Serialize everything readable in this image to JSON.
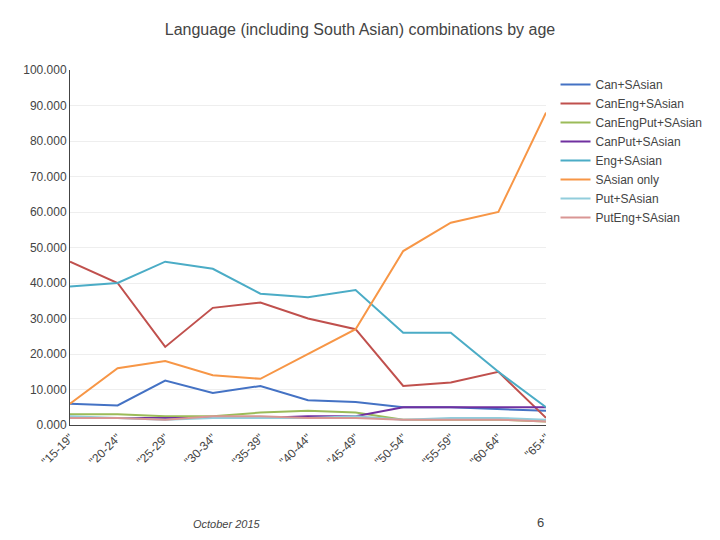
{
  "chart_data": {
    "type": "line",
    "title": "Language (including South Asian) combinations by age",
    "categories": [
      "\"15-19\"",
      "\"20-24\"",
      "\"25-29\"",
      "\"30-34\"",
      "\"35-39\"",
      "\"40-44\"",
      "\"45-49\"",
      "\"50-54\"",
      "\"55-59\"",
      "\"60-64\"",
      "\"65+\""
    ],
    "series": [
      {
        "name": "Can+SAsian",
        "color": "#4472C4",
        "values": [
          6000,
          5500,
          12500,
          9000,
          11000,
          7000,
          6500,
          5000,
          5000,
          4500,
          4000
        ]
      },
      {
        "name": "CanEng+SAsian",
        "color": "#C0504D",
        "values": [
          46000,
          40000,
          22000,
          33000,
          34500,
          30000,
          27000,
          11000,
          12000,
          15000,
          2000
        ]
      },
      {
        "name": "CanEngPut+SAsian",
        "color": "#9BBB59",
        "values": [
          3000,
          3000,
          2500,
          2500,
          3500,
          4000,
          3500,
          1500,
          1500,
          1500,
          1000
        ]
      },
      {
        "name": "CanPut+SAsian",
        "color": "#7030A0",
        "values": [
          2000,
          2000,
          2000,
          2000,
          2000,
          2500,
          2500,
          5000,
          5000,
          5000,
          5000
        ]
      },
      {
        "name": "Eng+SAsian",
        "color": "#4BACC6",
        "values": [
          39000,
          40000,
          46000,
          44000,
          37000,
          36000,
          38000,
          26000,
          26000,
          15000,
          5000
        ]
      },
      {
        "name": "SAsian only",
        "color": "#F79646",
        "values": [
          6000,
          16000,
          18000,
          14000,
          13000,
          20000,
          27000,
          49000,
          57000,
          60000,
          88000
        ]
      },
      {
        "name": "Put+SAsian",
        "color": "#92CDDC",
        "values": [
          2500,
          2000,
          1500,
          2000,
          2000,
          2000,
          2500,
          1500,
          2000,
          2000,
          1500
        ]
      },
      {
        "name": "PutEng+SAsian",
        "color": "#D99694",
        "values": [
          2000,
          2000,
          1500,
          2500,
          2500,
          2000,
          2000,
          1500,
          1500,
          1500,
          1000
        ]
      }
    ],
    "ylim": [
      0,
      100000
    ],
    "yticks": [
      {
        "value": 0,
        "label": "0.000"
      },
      {
        "value": 10000,
        "label": "10.000"
      },
      {
        "value": 20000,
        "label": "20.000"
      },
      {
        "value": 30000,
        "label": "30.000"
      },
      {
        "value": 40000,
        "label": "40.000"
      },
      {
        "value": 50000,
        "label": "50.000"
      },
      {
        "value": 60000,
        "label": "60.000"
      },
      {
        "value": 70000,
        "label": "70.000"
      },
      {
        "value": 80000,
        "label": "80.000"
      },
      {
        "value": 90000,
        "label": "90.000"
      },
      {
        "value": 100000,
        "label": "100.000"
      }
    ],
    "grid": true,
    "legend": "right",
    "annotations": [
      "October 2015",
      "6"
    ]
  }
}
